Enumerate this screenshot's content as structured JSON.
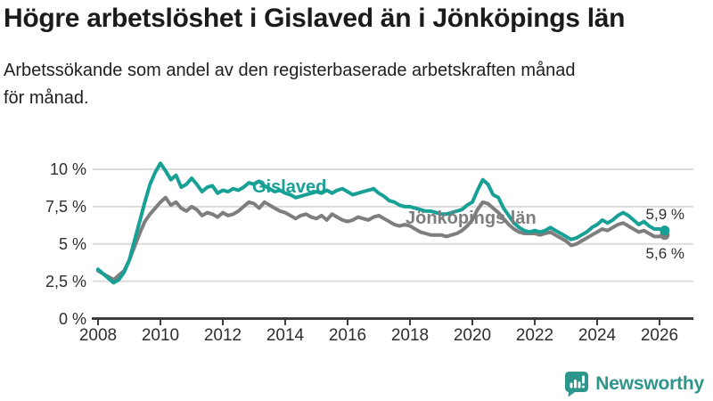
{
  "chart_data": {
    "type": "line",
    "title": "Högre arbetslöshet i Gislaved än i Jönköpings län",
    "subtitle": "Arbetssökande som andel av den registerbaserade arbetskraften månad för månad.",
    "unit": "%",
    "grid": true,
    "legend_position": "inline-labels",
    "x_axis": {
      "ticks": [
        2008,
        2010,
        2012,
        2014,
        2016,
        2018,
        2020,
        2022,
        2024,
        2026
      ],
      "labels": [
        "2008",
        "2010",
        "2012",
        "2014",
        "2016",
        "2018",
        "2020",
        "2022",
        "2024",
        "2026"
      ],
      "range": [
        2008,
        2027
      ]
    },
    "y_axis": {
      "ticks": [
        0,
        2.5,
        5,
        7.5,
        10
      ],
      "labels": [
        "0 %",
        "2,5 %",
        "5 %",
        "7,5 %",
        "10 %"
      ],
      "range": [
        0,
        10.5
      ]
    },
    "x_start": 2008,
    "x_step": 0.16667,
    "series": [
      {
        "name": "Jönköpings län",
        "color": "#7e7e7e",
        "end_label": "5,6 %",
        "values": [
          3.2,
          3.0,
          2.8,
          2.6,
          2.9,
          3.2,
          3.9,
          4.8,
          5.7,
          6.5,
          7.0,
          7.4,
          7.8,
          8.1,
          7.6,
          7.8,
          7.4,
          7.2,
          7.5,
          7.3,
          6.9,
          7.1,
          7.0,
          6.8,
          7.1,
          6.9,
          7.0,
          7.2,
          7.5,
          7.8,
          7.7,
          7.4,
          7.8,
          7.6,
          7.4,
          7.2,
          7.1,
          6.9,
          6.7,
          6.9,
          7.0,
          6.8,
          6.7,
          6.9,
          6.6,
          7.0,
          6.8,
          6.6,
          6.5,
          6.6,
          6.8,
          6.7,
          6.6,
          6.8,
          6.9,
          6.7,
          6.5,
          6.3,
          6.2,
          6.3,
          6.2,
          6.0,
          5.8,
          5.7,
          5.6,
          5.6,
          5.6,
          5.5,
          5.6,
          5.7,
          5.9,
          6.2,
          6.6,
          7.3,
          7.8,
          7.7,
          7.4,
          7.1,
          6.7,
          6.3,
          6.0,
          5.8,
          5.7,
          5.7,
          5.7,
          5.6,
          5.7,
          5.8,
          5.6,
          5.4,
          5.2,
          4.9,
          5.0,
          5.2,
          5.4,
          5.6,
          5.8,
          6.0,
          5.9,
          6.1,
          6.3,
          6.4,
          6.2,
          6.0,
          5.8,
          5.9,
          5.7,
          5.5,
          5.5,
          5.6
        ]
      },
      {
        "name": "Gislaved",
        "color": "#17a095",
        "end_label": "5,9 %",
        "values": [
          3.3,
          3.0,
          2.7,
          2.4,
          2.6,
          3.1,
          3.9,
          5.2,
          6.5,
          7.8,
          9.0,
          9.8,
          10.4,
          9.9,
          9.3,
          9.6,
          8.8,
          9.0,
          9.4,
          9.0,
          8.5,
          8.8,
          8.9,
          8.4,
          8.6,
          8.5,
          8.7,
          8.6,
          8.8,
          9.1,
          9.0,
          9.2,
          8.9,
          8.7,
          8.5,
          8.6,
          8.4,
          8.3,
          8.1,
          8.2,
          8.3,
          8.4,
          8.5,
          8.4,
          8.6,
          8.4,
          8.6,
          8.7,
          8.5,
          8.3,
          8.4,
          8.5,
          8.6,
          8.7,
          8.4,
          8.2,
          7.9,
          7.8,
          7.6,
          7.5,
          7.5,
          7.4,
          7.3,
          7.2,
          7.2,
          7.1,
          7.0,
          7.0,
          7.1,
          7.2,
          7.3,
          7.6,
          7.8,
          8.6,
          9.3,
          9.0,
          8.3,
          8.1,
          7.4,
          6.9,
          6.4,
          6.1,
          5.9,
          5.8,
          5.9,
          5.8,
          5.9,
          6.1,
          5.9,
          5.7,
          5.5,
          5.3,
          5.4,
          5.6,
          5.8,
          6.1,
          6.3,
          6.6,
          6.4,
          6.6,
          6.9,
          7.1,
          6.9,
          6.6,
          6.3,
          6.5,
          6.2,
          6.0,
          6.0,
          5.9
        ]
      }
    ],
    "colors": {
      "grid": "#dcdcdc",
      "axis": "#3d3d3d",
      "text": "#2e2e2e"
    }
  },
  "footer": {
    "brand": "Newsworthy",
    "brand_color": "#2d968c"
  }
}
